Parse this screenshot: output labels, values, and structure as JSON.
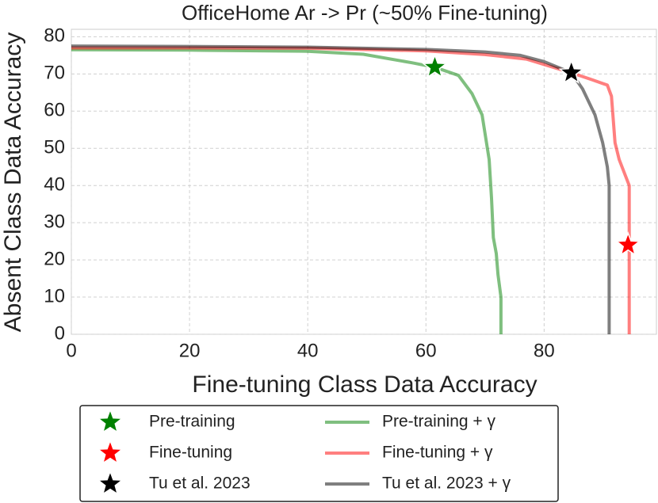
{
  "chart_data": {
    "type": "line",
    "title": "OfficeHome Ar -> Pr (~50% Fine-tuning)",
    "xlabel": "Fine-tuning Class Data Accuracy",
    "ylabel": "Absent Class Data Accuracy",
    "xlim": [
      0,
      99
    ],
    "ylim": [
      0,
      82
    ],
    "xticks": [
      0,
      20,
      40,
      60,
      80
    ],
    "yticks": [
      0,
      10,
      20,
      30,
      40,
      50,
      60,
      70,
      80
    ],
    "grid": true,
    "series": [
      {
        "name": "Pre-training",
        "color": "#008000",
        "style": "star",
        "x": [
          61.5
        ],
        "values": [
          71.8
        ]
      },
      {
        "name": "Fine-tuning",
        "color": "#ff0000",
        "style": "star",
        "x": [
          94.2
        ],
        "values": [
          24
        ]
      },
      {
        "name": "Tu et al. 2023",
        "color": "#000000",
        "style": "star",
        "x": [
          84.6
        ],
        "values": [
          70.3
        ]
      },
      {
        "name": "Pre-training + γ",
        "color": "#008000",
        "style": "line",
        "x": [
          0,
          20,
          40,
          49.4,
          57.7,
          61.5,
          65.5,
          67.8,
          69.5,
          70.7,
          71.1,
          71.4,
          71.9,
          72.2,
          72.7,
          72.7
        ],
        "values": [
          76.5,
          76.4,
          76.1,
          75.3,
          73,
          71.8,
          69.6,
          64.7,
          59,
          47,
          36.6,
          26,
          21.7,
          16,
          10,
          0
        ]
      },
      {
        "name": "Fine-tuning + γ",
        "color": "#ff0000",
        "style": "line",
        "x": [
          0,
          20,
          40,
          60,
          70,
          77,
          84.6,
          88,
          90.7,
          91.4,
          92,
          92.7,
          94.4,
          94.4
        ],
        "values": [
          77,
          77,
          76.9,
          76.2,
          75.2,
          74,
          70.3,
          68.5,
          67,
          64,
          51.5,
          47,
          40,
          0
        ]
      },
      {
        "name": "Tu et al. 2023 + γ",
        "color": "#000000",
        "style": "line",
        "x": [
          0,
          20,
          40,
          60,
          70,
          76,
          80,
          84.6,
          86.5,
          88.6,
          89.9,
          90.7,
          91,
          91
        ],
        "values": [
          77.5,
          77.4,
          77.2,
          76.6,
          75.9,
          75,
          73.3,
          70.3,
          66,
          59,
          51.5,
          45,
          40,
          0
        ]
      }
    ]
  }
}
